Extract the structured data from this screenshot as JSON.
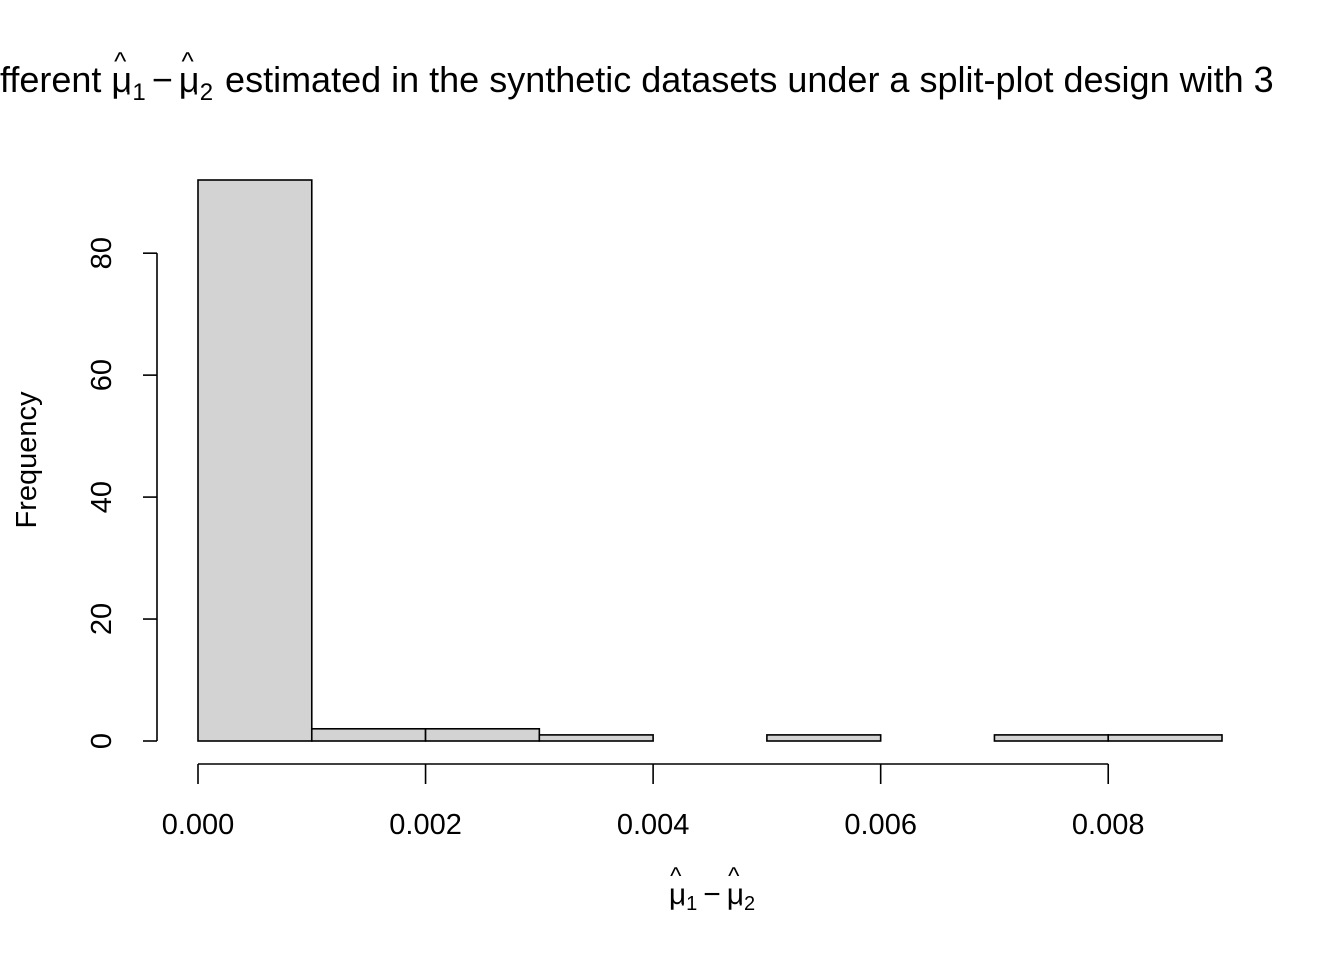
{
  "chart_data": {
    "type": "bar",
    "title": {
      "pre": "fferent",
      "term1_symbol": "μ",
      "term1_hat": "^",
      "term1_subscript": "·1",
      "minus": "−",
      "term2_symbol": "μ",
      "term2_hat": "^",
      "term2_subscript": "·2",
      "post": "estimated in the synthetic datasets under a split-plot design with 3"
    },
    "xlabel": {
      "term1_symbol": "μ",
      "term1_hat": "^",
      "term1_subscript": "·1",
      "minus": "−",
      "term2_symbol": "μ",
      "term2_hat": "^",
      "term2_subscript": "·2"
    },
    "ylabel": "Frequency",
    "bins": [
      {
        "x0": 0.0,
        "x1": 0.001,
        "count": 92
      },
      {
        "x0": 0.001,
        "x1": 0.002,
        "count": 2
      },
      {
        "x0": 0.002,
        "x1": 0.003,
        "count": 2
      },
      {
        "x0": 0.003,
        "x1": 0.004,
        "count": 1
      },
      {
        "x0": 0.004,
        "x1": 0.005,
        "count": 0
      },
      {
        "x0": 0.005,
        "x1": 0.006,
        "count": 1
      },
      {
        "x0": 0.006,
        "x1": 0.007,
        "count": 0
      },
      {
        "x0": 0.007,
        "x1": 0.008,
        "count": 1
      },
      {
        "x0": 0.008,
        "x1": 0.009,
        "count": 1
      }
    ],
    "xlim": [
      0,
      0.009
    ],
    "ylim": [
      0,
      92
    ],
    "xticks": [
      {
        "value": 0.0,
        "label": "0.000"
      },
      {
        "value": 0.002,
        "label": "0.002"
      },
      {
        "value": 0.004,
        "label": "0.004"
      },
      {
        "value": 0.006,
        "label": "0.006"
      },
      {
        "value": 0.008,
        "label": "0.008"
      }
    ],
    "yticks": [
      {
        "value": 0,
        "label": "0"
      },
      {
        "value": 20,
        "label": "20"
      },
      {
        "value": 40,
        "label": "40"
      },
      {
        "value": 60,
        "label": "60"
      },
      {
        "value": 80,
        "label": "80"
      }
    ],
    "grid": false,
    "bar_color": "#d3d3d3",
    "edge_color": "#000000"
  }
}
